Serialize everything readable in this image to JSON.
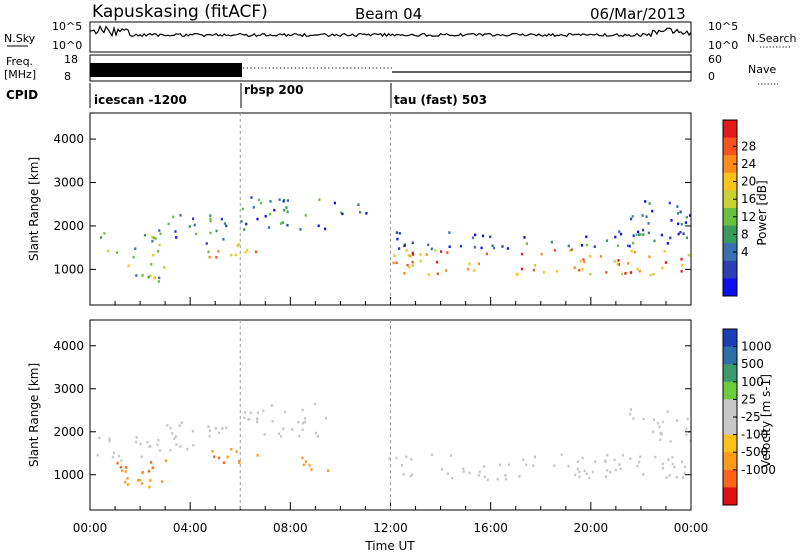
{
  "header": {
    "station": "Kapuskasing (fitACF)",
    "beam": "Beam 04",
    "date": "06/Mar/2013"
  },
  "noise_panel": {
    "left_label": "N.Sky",
    "left_ticks": [
      "10^5",
      "10^0"
    ],
    "right_label": "N.Search",
    "right_ticks": [
      "10^5",
      "10^0"
    ]
  },
  "freq_panel": {
    "left_label_line1": "Freq.",
    "left_label_line2": "[MHz]",
    "left_ticks": [
      "18",
      "8"
    ],
    "right_label": "Nave",
    "right_ticks": [
      "60",
      "0"
    ]
  },
  "cpid": {
    "label": "CPID",
    "segments": [
      {
        "name": "icescan -1200",
        "start": 0
      },
      {
        "name": "rbsp 200",
        "start": 6
      },
      {
        "name": "tau (fast) 503",
        "start": 12
      }
    ]
  },
  "power_colorbar": {
    "label": "Power [dB]",
    "ticks": [
      "28",
      "24",
      "20",
      "16",
      "12",
      "8",
      "4"
    ],
    "colors": [
      "#e31a1c",
      "#f5551c",
      "#ff8c1a",
      "#ffc21a",
      "#c8d232",
      "#6bbf3e",
      "#3a9a5c",
      "#3a6fb0",
      "#2d3fb5",
      "#1010ee"
    ]
  },
  "velocity_colorbar": {
    "label": "Velocity [m s-1]",
    "ticks": [
      "1000",
      "500",
      "100",
      "25",
      "-25",
      "-100",
      "-500",
      "-1000"
    ],
    "colors": [
      "#1a3fb5",
      "#2e6fa8",
      "#3d9a6a",
      "#6ccc3c",
      "#c8c8c8",
      "#c8c8c8",
      "#ffc21a",
      "#ff9a1a",
      "#ff641a",
      "#e01010"
    ]
  },
  "chart_data": [
    {
      "type": "heatmap",
      "name": "Power",
      "ylabel": "Slant Range [km]",
      "xlim": [
        0,
        24
      ],
      "ylim": [
        180,
        4600
      ],
      "yticks": [
        1000,
        2000,
        3000,
        4000
      ],
      "x_ticks": [
        "00:00",
        "04:00",
        "08:00",
        "12:00",
        "16:00",
        "20:00",
        "00:00"
      ],
      "echo_regions": [
        {
          "t_start": 0.2,
          "t_end": 2.8,
          "r_min": 1300,
          "r_max": 1900,
          "power": 10
        },
        {
          "t_start": 0.8,
          "t_end": 3.0,
          "r_min": 700,
          "r_max": 1150,
          "power": 14
        },
        {
          "t_start": 2.5,
          "t_end": 5.5,
          "r_min": 1600,
          "r_max": 2300,
          "power": 8
        },
        {
          "t_start": 4.5,
          "t_end": 6.8,
          "r_min": 1250,
          "r_max": 1650,
          "power": 20
        },
        {
          "t_start": 6.0,
          "t_end": 9.5,
          "r_min": 1900,
          "r_max": 2700,
          "power": 8
        },
        {
          "t_start": 9.5,
          "t_end": 11.0,
          "r_min": 2300,
          "r_max": 2600,
          "power": 8
        },
        {
          "t_start": 11.8,
          "t_end": 24.0,
          "r_min": 900,
          "r_max": 1500,
          "power": 22
        },
        {
          "t_start": 12.0,
          "t_end": 24.0,
          "r_min": 1500,
          "r_max": 1900,
          "power": 6
        },
        {
          "t_start": 21.5,
          "t_end": 24.0,
          "r_min": 1800,
          "r_max": 2600,
          "power": 6
        }
      ]
    },
    {
      "type": "heatmap",
      "name": "Velocity",
      "ylabel": "Slant Range [km]",
      "xlabel": "Time UT",
      "xlim": [
        0,
        24
      ],
      "ylim": [
        180,
        4600
      ],
      "yticks": [
        1000,
        2000,
        3000,
        4000
      ],
      "x_ticks": [
        "00:00",
        "04:00",
        "08:00",
        "12:00",
        "16:00",
        "20:00",
        "00:00"
      ],
      "echo_regions": [
        {
          "t_start": 0.2,
          "t_end": 2.8,
          "r_min": 1300,
          "r_max": 1900,
          "velocity": 0
        },
        {
          "t_start": 0.8,
          "t_end": 3.0,
          "r_min": 700,
          "r_max": 1150,
          "velocity": -400
        },
        {
          "t_start": 1.0,
          "t_end": 3.2,
          "r_min": 1050,
          "r_max": 1500,
          "velocity": -700
        },
        {
          "t_start": 2.5,
          "t_end": 5.5,
          "r_min": 1600,
          "r_max": 2300,
          "velocity": 0
        },
        {
          "t_start": 4.5,
          "t_end": 6.8,
          "r_min": 1250,
          "r_max": 1650,
          "velocity": -700
        },
        {
          "t_start": 6.0,
          "t_end": 9.5,
          "r_min": 1900,
          "r_max": 2700,
          "velocity": 0
        },
        {
          "t_start": 8.0,
          "t_end": 9.5,
          "r_min": 1100,
          "r_max": 1500,
          "velocity": -150
        },
        {
          "t_start": 11.8,
          "t_end": 24.0,
          "r_min": 900,
          "r_max": 1500,
          "velocity": 0
        },
        {
          "t_start": 21.5,
          "t_end": 24.0,
          "r_min": 1800,
          "r_max": 2600,
          "velocity": 0
        }
      ]
    }
  ]
}
